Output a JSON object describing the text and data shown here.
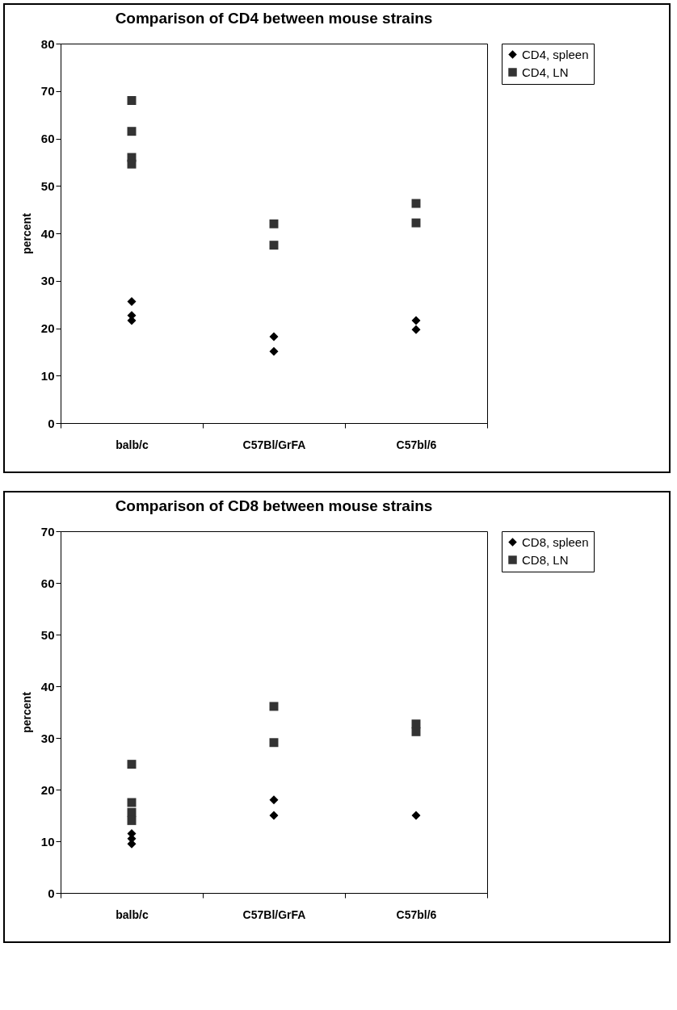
{
  "chart_data": [
    {
      "type": "scatter",
      "title": "Comparison of CD4 between mouse strains",
      "ylabel": "percent",
      "categories": [
        "balb/c",
        "C57Bl/GrFA",
        "C57bl/6"
      ],
      "ylim": [
        0,
        80
      ],
      "yticks": [
        0,
        10,
        20,
        30,
        40,
        50,
        60,
        70,
        80
      ],
      "grid": false,
      "legend": "right",
      "series": [
        {
          "name": "CD4, spleen",
          "color": "#000000",
          "marker": "diamond",
          "x": [
            "balb/c",
            "balb/c",
            "balb/c",
            "C57Bl/GrFA",
            "C57Bl/GrFA",
            "C57bl/6",
            "C57bl/6"
          ],
          "values": [
            25.6,
            22.7,
            21.6,
            18.2,
            15.1,
            21.6,
            19.7
          ]
        },
        {
          "name": "CD4, LN",
          "color": "#333333",
          "marker": "square",
          "x": [
            "balb/c",
            "balb/c",
            "balb/c",
            "balb/c",
            "C57Bl/GrFA",
            "C57Bl/GrFA",
            "C57bl/6",
            "C57bl/6"
          ],
          "values": [
            68.0,
            61.5,
            56.0,
            54.6,
            42.0,
            37.5,
            46.3,
            42.2
          ]
        }
      ]
    },
    {
      "type": "scatter",
      "title": "Comparison of CD8 between mouse strains",
      "ylabel": "percent",
      "categories": [
        "balb/c",
        "C57Bl/GrFA",
        "C57bl/6"
      ],
      "ylim": [
        0,
        70
      ],
      "yticks": [
        0,
        10,
        20,
        30,
        40,
        50,
        60,
        70
      ],
      "grid": false,
      "legend": "right",
      "series": [
        {
          "name": "CD8, spleen",
          "color": "#000000",
          "marker": "diamond",
          "x": [
            "balb/c",
            "balb/c",
            "balb/c",
            "C57Bl/GrFA",
            "C57Bl/GrFA",
            "C57bl/6"
          ],
          "values": [
            11.5,
            10.5,
            9.5,
            18.0,
            15.0,
            15.0
          ]
        },
        {
          "name": "CD8, LN",
          "color": "#333333",
          "marker": "square",
          "x": [
            "balb/c",
            "balb/c",
            "balb/c",
            "balb/c",
            "C57Bl/GrFA",
            "C57Bl/GrFA",
            "C57bl/6",
            "C57bl/6"
          ],
          "values": [
            24.9,
            17.5,
            15.6,
            14.0,
            36.1,
            29.1,
            32.7,
            31.2
          ]
        }
      ]
    }
  ]
}
